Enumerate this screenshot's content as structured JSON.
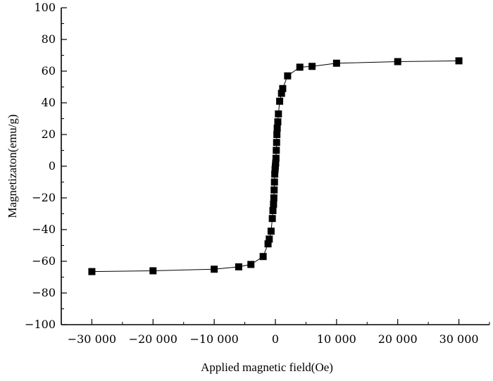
{
  "chart_data": {
    "type": "scatter",
    "title": "",
    "xlabel": "Applied magnetic field(Oe)",
    "ylabel": "Magnetizaton(emu/g)",
    "xlim": [
      -35000,
      35000
    ],
    "ylim": [
      -100,
      100
    ],
    "x_ticks": [
      -30000,
      -20000,
      -10000,
      0,
      10000,
      20000,
      30000
    ],
    "x_tick_labels": [
      "−30 000",
      "−20 000",
      "−10 000",
      "0",
      "10 000",
      "20 000",
      "30 000"
    ],
    "y_ticks": [
      -100,
      -80,
      -60,
      -40,
      -20,
      0,
      20,
      40,
      60,
      80,
      100
    ],
    "y_tick_labels": [
      "−100",
      "−80",
      "−60",
      "−40",
      "−20",
      "0",
      "20",
      "40",
      "60",
      "80",
      "100"
    ],
    "grid": false,
    "legend": "none",
    "marker": "square",
    "line": "solid",
    "color": "#000000",
    "series": [
      {
        "x": [
          -30000,
          -20000,
          -10000,
          -6000,
          -4000,
          -2000,
          -1200,
          -1000,
          -700,
          -500,
          -400,
          -300,
          -250,
          -200,
          -150,
          -100,
          -50,
          0,
          50,
          100,
          150,
          200,
          250,
          300,
          400,
          500,
          700,
          1000,
          1200,
          2000,
          4000,
          6000,
          10000,
          20000,
          30000
        ],
        "y": [
          -66.5,
          -66,
          -65,
          -63.5,
          -62,
          -57,
          -49,
          -46,
          -41,
          -33,
          -28,
          -24,
          -20,
          -15,
          -10,
          -5,
          -2,
          0,
          2,
          5,
          10,
          15,
          20,
          24,
          28,
          33,
          41,
          46,
          49,
          57,
          62.5,
          63,
          65,
          66,
          66.5
        ]
      }
    ]
  }
}
